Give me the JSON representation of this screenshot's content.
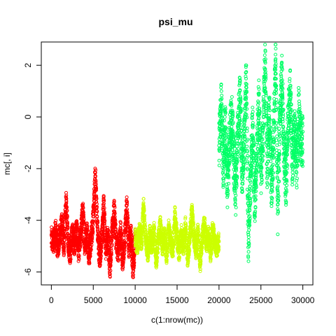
{
  "chart_data": {
    "type": "scatter",
    "title": "psi_mu",
    "xlabel": "c(1:nrow(mc))",
    "ylabel": "mc[, i]",
    "xlim": [
      -1200,
      31200
    ],
    "ylim": [
      -6.5,
      2.9
    ],
    "x_ticks": [
      0,
      5000,
      10000,
      15000,
      20000,
      25000,
      30000
    ],
    "y_ticks": [
      -6,
      -4,
      -2,
      0,
      2
    ],
    "marker": "open-circle",
    "series": [
      {
        "color": "#ff0000",
        "x_range": [
          0,
          10000
        ],
        "points": [
          [
            0,
            -4.7
          ],
          [
            250,
            -4.9
          ],
          [
            500,
            -4.4
          ],
          [
            750,
            -5.1
          ],
          [
            1000,
            -4.6
          ],
          [
            1250,
            -4.2
          ],
          [
            1500,
            -5.0
          ],
          [
            1750,
            -3.3
          ],
          [
            2000,
            -4.8
          ],
          [
            2250,
            -5.3
          ],
          [
            2500,
            -4.5
          ],
          [
            2750,
            -4.9
          ],
          [
            3000,
            -4.3
          ],
          [
            3250,
            -5.2
          ],
          [
            3500,
            -4.6
          ],
          [
            3750,
            -3.6
          ],
          [
            4000,
            -5.0
          ],
          [
            4250,
            -4.4
          ],
          [
            4500,
            -5.4
          ],
          [
            4750,
            -4.7
          ],
          [
            5000,
            -3.9
          ],
          [
            5250,
            -2.2
          ],
          [
            5500,
            -4.3
          ],
          [
            5750,
            -5.5
          ],
          [
            6000,
            -4.8
          ],
          [
            6250,
            -3.4
          ],
          [
            6500,
            -5.1
          ],
          [
            6750,
            -4.6
          ],
          [
            7000,
            -5.8
          ],
          [
            7250,
            -4.5
          ],
          [
            7500,
            -3.6
          ],
          [
            7750,
            -4.9
          ],
          [
            8000,
            -5.2
          ],
          [
            8250,
            -4.4
          ],
          [
            8500,
            -5.6
          ],
          [
            8750,
            -4.7
          ],
          [
            9000,
            -3.5
          ],
          [
            9250,
            -5.0
          ],
          [
            9500,
            -4.6
          ],
          [
            9750,
            -5.9
          ]
        ],
        "mean": -4.75,
        "spread": 0.45
      },
      {
        "color": "#ccff00",
        "x_range": [
          10000,
          20000
        ],
        "points": [
          [
            10000,
            -4.6
          ],
          [
            10250,
            -5.1
          ],
          [
            10500,
            -4.3
          ],
          [
            10750,
            -4.9
          ],
          [
            11000,
            -3.4
          ],
          [
            11250,
            -4.7
          ],
          [
            11500,
            -5.3
          ],
          [
            11750,
            -4.5
          ],
          [
            12000,
            -5.0
          ],
          [
            12250,
            -4.4
          ],
          [
            12500,
            -5.6
          ],
          [
            12750,
            -4.8
          ],
          [
            13000,
            -4.2
          ],
          [
            13250,
            -5.1
          ],
          [
            13500,
            -4.6
          ],
          [
            13750,
            -5.4
          ],
          [
            14000,
            -4.3
          ],
          [
            14250,
            -4.9
          ],
          [
            14500,
            -5.2
          ],
          [
            14750,
            -3.8
          ],
          [
            15000,
            -4.7
          ],
          [
            15250,
            -5.3
          ],
          [
            15500,
            -4.5
          ],
          [
            15750,
            -5.0
          ],
          [
            16000,
            -4.2
          ],
          [
            16250,
            -5.5
          ],
          [
            16500,
            -4.8
          ],
          [
            16750,
            -3.6
          ],
          [
            17000,
            -4.6
          ],
          [
            17250,
            -5.2
          ],
          [
            17500,
            -4.4
          ],
          [
            17750,
            -5.7
          ],
          [
            18000,
            -4.7
          ],
          [
            18250,
            -4.1
          ],
          [
            18500,
            -5.0
          ],
          [
            18750,
            -4.5
          ],
          [
            19000,
            -5.3
          ],
          [
            19250,
            -4.3
          ],
          [
            19500,
            -4.9
          ],
          [
            19750,
            -5.1
          ]
        ],
        "mean": -4.8,
        "spread": 0.35
      },
      {
        "color": "#00ff66",
        "x_range": [
          20000,
          30000
        ],
        "points": [
          [
            20000,
            -1.2
          ],
          [
            20250,
            0.5
          ],
          [
            20500,
            -1.8
          ],
          [
            20750,
            -0.4
          ],
          [
            21000,
            -2.6
          ],
          [
            21250,
            -0.9
          ],
          [
            21500,
            0.1
          ],
          [
            21750,
            -1.5
          ],
          [
            22000,
            -2.9
          ],
          [
            22250,
            -0.6
          ],
          [
            22500,
            0.8
          ],
          [
            22750,
            -2.1
          ],
          [
            23000,
            -1.0
          ],
          [
            23250,
            1.5
          ],
          [
            23500,
            -4.9
          ],
          [
            23750,
            -2.4
          ],
          [
            24000,
            -0.2
          ],
          [
            24250,
            -3.3
          ],
          [
            24500,
            -1.6
          ],
          [
            24750,
            0.6
          ],
          [
            25000,
            -2.2
          ],
          [
            25250,
            -0.7
          ],
          [
            25500,
            2.2
          ],
          [
            25750,
            -1.9
          ],
          [
            26000,
            0.3
          ],
          [
            26250,
            -2.8
          ],
          [
            26500,
            -1.1
          ],
          [
            26750,
            2.6
          ],
          [
            27000,
            -3.8
          ],
          [
            27250,
            -0.3
          ],
          [
            27500,
            1.7
          ],
          [
            27750,
            -1.4
          ],
          [
            28000,
            -2.5
          ],
          [
            28250,
            -0.1
          ],
          [
            28500,
            0.9
          ],
          [
            28750,
            -1.7
          ],
          [
            29000,
            -0.5
          ],
          [
            29250,
            -2.0
          ],
          [
            29500,
            0.2
          ],
          [
            29750,
            -1.0
          ]
        ],
        "mean": -0.9,
        "spread": 1.0
      }
    ]
  }
}
